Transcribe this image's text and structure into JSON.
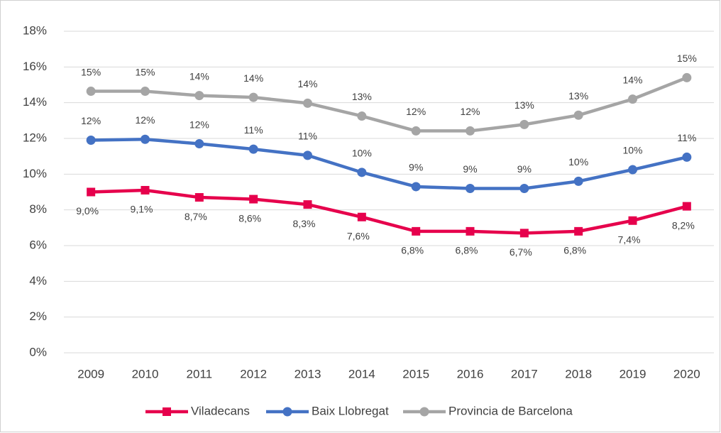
{
  "chart_data": {
    "type": "line",
    "categories": [
      "2009",
      "2010",
      "2011",
      "2012",
      "2013",
      "2014",
      "2015",
      "2016",
      "2017",
      "2018",
      "2019",
      "2020"
    ],
    "series": [
      {
        "name": "Viladecans",
        "color": "#e6004c",
        "marker": "square",
        "values": [
          9.0,
          9.1,
          8.7,
          8.6,
          8.3,
          7.6,
          6.8,
          6.8,
          6.7,
          6.8,
          7.4,
          8.2
        ],
        "value_labels": [
          "9,0%",
          "9,1%",
          "8,7%",
          "8,6%",
          "8,3%",
          "7,6%",
          "6,8%",
          "6,8%",
          "6,7%",
          "6,8%",
          "7,4%",
          "8,2%"
        ]
      },
      {
        "name": "Baix Llobregat",
        "color": "#4472c4",
        "marker": "circle",
        "values": [
          11.9,
          11.95,
          11.7,
          11.4,
          11.05,
          10.1,
          9.3,
          9.2,
          9.2,
          9.6,
          10.25,
          10.95
        ],
        "value_labels": [
          "12%",
          "12%",
          "12%",
          "11%",
          "11%",
          "10%",
          "9%",
          "9%",
          "9%",
          "10%",
          "10%",
          "11%"
        ]
      },
      {
        "name": "Provincia de Barcelona",
        "color": "#a5a5a5",
        "marker": "circle",
        "values": [
          14.64,
          14.64,
          14.4,
          14.3,
          13.97,
          13.25,
          12.42,
          12.42,
          12.78,
          13.3,
          14.2,
          15.4
        ],
        "value_labels": [
          "15%",
          "15%",
          "14%",
          "14%",
          "14%",
          "13%",
          "12%",
          "12%",
          "13%",
          "13%",
          "14%",
          "15%"
        ]
      }
    ],
    "ylim": [
      0,
      18
    ],
    "yticks": [
      {
        "value": 0,
        "label": "0%"
      },
      {
        "value": 2,
        "label": "2%"
      },
      {
        "value": 4,
        "label": "4%"
      },
      {
        "value": 6,
        "label": "6%"
      },
      {
        "value": 8,
        "label": "8%"
      },
      {
        "value": 10,
        "label": "10%"
      },
      {
        "value": 12,
        "label": "12%"
      },
      {
        "value": 14,
        "label": "14%"
      },
      {
        "value": 16,
        "label": "16%"
      },
      {
        "value": 18,
        "label": "18%"
      }
    ],
    "grid": true,
    "legend": "bottom"
  }
}
